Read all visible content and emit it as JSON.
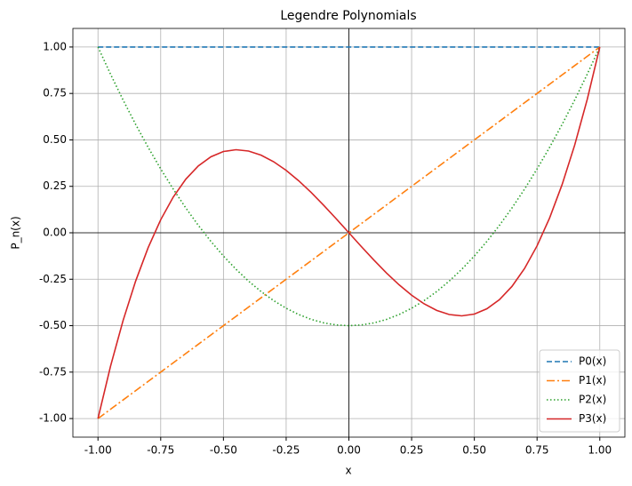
{
  "chart_data": {
    "type": "line",
    "title": "Legendre Polynomials",
    "x_label": "x",
    "y_label": "P_n(x)",
    "x": [
      -1,
      -0.95,
      -0.9,
      -0.85,
      -0.8,
      -0.75,
      -0.7,
      -0.65,
      -0.6,
      -0.55,
      -0.5,
      -0.45,
      -0.4,
      -0.35,
      -0.3,
      -0.25,
      -0.2,
      -0.15,
      -0.1,
      -0.05,
      0,
      0.05,
      0.1,
      0.15,
      0.2,
      0.25,
      0.3,
      0.35,
      0.4,
      0.45,
      0.5,
      0.55,
      0.6,
      0.65,
      0.7,
      0.75,
      0.8,
      0.85,
      0.9,
      0.95,
      1
    ],
    "series": [
      {
        "name": "P0(x)",
        "color": "#1f77b4",
        "dash": "dashed",
        "values": [
          1,
          1,
          1,
          1,
          1,
          1,
          1,
          1,
          1,
          1,
          1,
          1,
          1,
          1,
          1,
          1,
          1,
          1,
          1,
          1,
          1,
          1,
          1,
          1,
          1,
          1,
          1,
          1,
          1,
          1,
          1,
          1,
          1,
          1,
          1,
          1,
          1,
          1,
          1,
          1,
          1
        ]
      },
      {
        "name": "P1(x)",
        "color": "#ff7f0e",
        "dash": "dashdot",
        "values": [
          -1,
          -0.95,
          -0.9,
          -0.85,
          -0.8,
          -0.75,
          -0.7,
          -0.65,
          -0.6,
          -0.55,
          -0.5,
          -0.45,
          -0.4,
          -0.35,
          -0.3,
          -0.25,
          -0.2,
          -0.15,
          -0.1,
          -0.05,
          0,
          0.05,
          0.1,
          0.15,
          0.2,
          0.25,
          0.3,
          0.35,
          0.4,
          0.45,
          0.5,
          0.55,
          0.6,
          0.65,
          0.7,
          0.75,
          0.8,
          0.85,
          0.9,
          0.95,
          1
        ]
      },
      {
        "name": "P2(x)",
        "color": "#2ca02c",
        "dash": "dotted",
        "values": [
          1,
          0.85375,
          0.715,
          0.58375,
          0.46,
          0.34375,
          0.235,
          0.13375,
          0.04,
          -0.04625,
          -0.125,
          -0.19625,
          -0.26,
          -0.31625,
          -0.365,
          -0.40625,
          -0.44,
          -0.46625,
          -0.485,
          -0.49625,
          -0.5,
          -0.49625,
          -0.485,
          -0.46625,
          -0.44,
          -0.40625,
          -0.365,
          -0.31625,
          -0.26,
          -0.19625,
          -0.125,
          -0.04625,
          0.04,
          0.13375,
          0.235,
          0.34375,
          0.46,
          0.58375,
          0.715,
          0.85375,
          1
        ]
      },
      {
        "name": "P3(x)",
        "color": "#d62728",
        "dash": "solid",
        "values": [
          -1,
          -0.7184375,
          -0.4725,
          -0.2603125,
          -0.08,
          0.0703125,
          0.1925,
          0.2884375,
          0.36,
          0.4090625,
          0.4375,
          0.4471875,
          0.44,
          0.4178125,
          0.3825,
          0.3359375,
          0.28,
          0.2165625,
          0.1475,
          0.0746875,
          0,
          -0.0746875,
          -0.1475,
          -0.2165625,
          -0.28,
          -0.3359375,
          -0.3825,
          -0.4178125,
          -0.44,
          -0.4471875,
          -0.4375,
          -0.4090625,
          -0.36,
          -0.2884375,
          -0.1925,
          -0.0703125,
          0.08,
          0.2603125,
          0.4725,
          0.7184375,
          1
        ]
      }
    ],
    "xlim": [
      -1.1,
      1.1
    ],
    "ylim": [
      -1.1,
      1.1
    ],
    "xticks": [
      {
        "value": -1,
        "label": "-1.00"
      },
      {
        "value": -0.75,
        "label": "-0.75"
      },
      {
        "value": -0.5,
        "label": "-0.50"
      },
      {
        "value": -0.25,
        "label": "-0.25"
      },
      {
        "value": 0,
        "label": "0.00"
      },
      {
        "value": 0.25,
        "label": "0.25"
      },
      {
        "value": 0.5,
        "label": "0.50"
      },
      {
        "value": 0.75,
        "label": "0.75"
      },
      {
        "value": 1,
        "label": "1.00"
      }
    ],
    "yticks": [
      {
        "value": -1,
        "label": "-1.00"
      },
      {
        "value": -0.75,
        "label": "-0.75"
      },
      {
        "value": -0.5,
        "label": "-0.50"
      },
      {
        "value": -0.25,
        "label": "-0.25"
      },
      {
        "value": 0,
        "label": "0.00"
      },
      {
        "value": 0.25,
        "label": "0.25"
      },
      {
        "value": 0.5,
        "label": "0.50"
      },
      {
        "value": 0.75,
        "label": "0.75"
      },
      {
        "value": 1,
        "label": "1.00"
      }
    ],
    "grid": true,
    "zero_lines": true,
    "legend": "lower right"
  }
}
